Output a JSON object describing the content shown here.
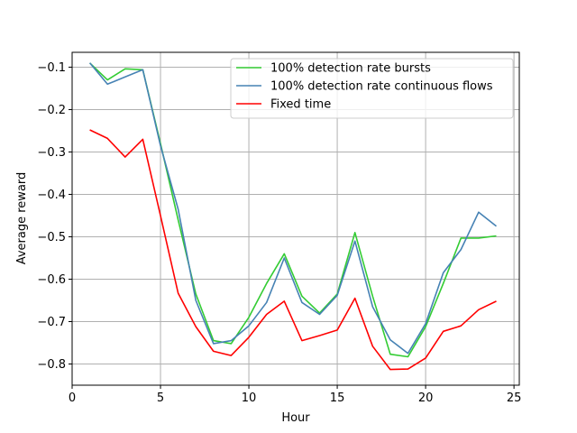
{
  "chart_data": {
    "type": "line",
    "title": "",
    "xlabel": "Hour",
    "ylabel": "Average reward",
    "xlim": [
      0,
      25.3
    ],
    "ylim": [
      -0.85,
      -0.065
    ],
    "xticks": [
      0,
      5,
      10,
      15,
      20,
      25
    ],
    "yticks": [
      -0.1,
      -0.2,
      -0.3,
      -0.4,
      -0.5,
      -0.6,
      -0.7,
      -0.8
    ],
    "ytick_labels": [
      "−0.1",
      "−0.2",
      "−0.3",
      "−0.4",
      "−0.5",
      "−0.6",
      "−0.7",
      "−0.8"
    ],
    "grid": true,
    "legend_position": "top-right",
    "x": [
      1,
      2,
      3,
      4,
      5,
      6,
      7,
      8,
      9,
      10,
      11,
      12,
      13,
      14,
      15,
      16,
      17,
      18,
      19,
      20,
      21,
      22,
      23,
      24
    ],
    "series": [
      {
        "name": "100% detection rate bursts",
        "color": "#33cc33",
        "values": [
          -0.09,
          -0.13,
          -0.104,
          -0.106,
          -0.28,
          -0.46,
          -0.635,
          -0.745,
          -0.752,
          -0.69,
          -0.61,
          -0.54,
          -0.64,
          -0.68,
          -0.635,
          -0.49,
          -0.64,
          -0.777,
          -0.783,
          -0.712,
          -0.61,
          -0.503,
          -0.503,
          -0.498
        ]
      },
      {
        "name": "100% detection rate continuous flows",
        "color": "#4682b4",
        "values": [
          -0.09,
          -0.14,
          -0.123,
          -0.106,
          -0.285,
          -0.435,
          -0.65,
          -0.752,
          -0.745,
          -0.71,
          -0.655,
          -0.55,
          -0.655,
          -0.683,
          -0.638,
          -0.51,
          -0.665,
          -0.743,
          -0.775,
          -0.705,
          -0.585,
          -0.53,
          -0.442,
          -0.475
        ]
      },
      {
        "name": "Fixed time",
        "color": "#ff0000",
        "values": [
          -0.248,
          -0.268,
          -0.312,
          -0.27,
          -0.45,
          -0.633,
          -0.712,
          -0.77,
          -0.78,
          -0.737,
          -0.683,
          -0.652,
          -0.745,
          -0.733,
          -0.72,
          -0.645,
          -0.758,
          -0.813,
          -0.812,
          -0.786,
          -0.723,
          -0.71,
          -0.672,
          -0.652
        ]
      }
    ]
  }
}
